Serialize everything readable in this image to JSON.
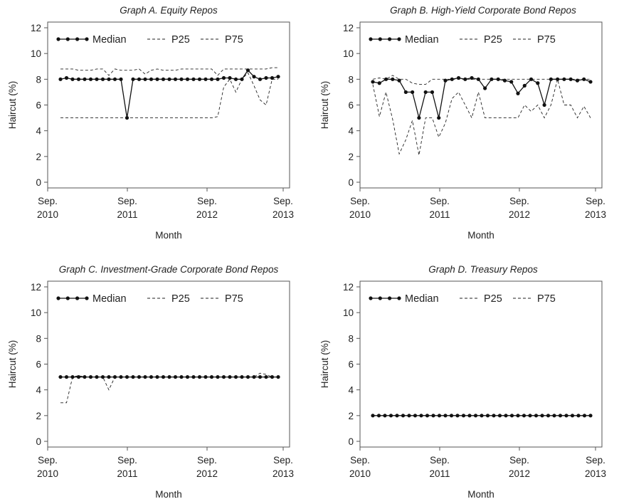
{
  "chart_data": [
    {
      "type": "line",
      "title": "Graph A. Equity Repos",
      "xlabel": "Month",
      "ylabel": "Haircut (%)",
      "ylim": [
        0,
        12
      ],
      "yticks": [
        "0",
        "2",
        "4",
        "6",
        "8",
        "10",
        "12"
      ],
      "xticks": [
        {
          "top": "Sep.",
          "bottom": "2010"
        },
        {
          "top": "Sep.",
          "bottom": "2011"
        },
        {
          "top": "Sep.",
          "bottom": "2012"
        },
        {
          "top": "Sep.",
          "bottom": "2013"
        }
      ],
      "legend": "top-left",
      "series": [
        {
          "name": "Median",
          "style": "solid-markers",
          "values": [
            8.0,
            8.1,
            8.0,
            8.0,
            8.0,
            8.0,
            8.0,
            8.0,
            8.0,
            8.0,
            8.0,
            5.0,
            8.0,
            8.0,
            8.0,
            8.0,
            8.0,
            8.0,
            8.0,
            8.0,
            8.0,
            8.0,
            8.0,
            8.0,
            8.0,
            8.0,
            8.0,
            8.1,
            8.1,
            8.0,
            8.0,
            8.7,
            8.2,
            8.0,
            8.1,
            8.1,
            8.2
          ]
        },
        {
          "name": "P25",
          "style": "dashed",
          "values": [
            5.0,
            5.0,
            5.0,
            5.0,
            5.0,
            5.0,
            5.0,
            5.0,
            5.0,
            5.0,
            5.0,
            5.0,
            5.0,
            5.0,
            5.0,
            5.0,
            5.0,
            5.0,
            5.0,
            5.0,
            5.0,
            5.0,
            5.0,
            5.0,
            5.0,
            5.0,
            5.1,
            7.4,
            8.0,
            7.0,
            8.0,
            8.5,
            7.5,
            6.4,
            6.0,
            8.0,
            8.0
          ]
        },
        {
          "name": "P75",
          "style": "dashed",
          "values": [
            8.8,
            8.8,
            8.8,
            8.7,
            8.7,
            8.7,
            8.8,
            8.8,
            8.3,
            8.8,
            8.7,
            8.7,
            8.7,
            8.8,
            8.4,
            8.7,
            8.8,
            8.7,
            8.7,
            8.7,
            8.8,
            8.8,
            8.8,
            8.8,
            8.8,
            8.8,
            8.3,
            8.8,
            8.8,
            8.8,
            8.8,
            8.8,
            8.8,
            8.8,
            8.8,
            8.9,
            8.9
          ]
        }
      ]
    },
    {
      "type": "line",
      "title": "Graph B. High-Yield Corporate Bond Repos",
      "xlabel": "Month",
      "ylabel": "Haircut (%)",
      "ylim": [
        0,
        12
      ],
      "yticks": [
        "0",
        "2",
        "4",
        "6",
        "8",
        "10",
        "12"
      ],
      "xticks": [
        {
          "top": "Sep.",
          "bottom": "2010"
        },
        {
          "top": "Sep.",
          "bottom": "2011"
        },
        {
          "top": "Sep.",
          "bottom": "2012"
        },
        {
          "top": "Sep.",
          "bottom": "2013"
        }
      ],
      "legend": "top-left",
      "series": [
        {
          "name": "Median",
          "style": "solid-markers",
          "values": [
            7.8,
            7.7,
            8.0,
            8.0,
            7.9,
            7.0,
            7.0,
            5.0,
            7.0,
            7.0,
            5.0,
            7.9,
            8.0,
            8.1,
            8.0,
            8.1,
            8.0,
            7.3,
            8.0,
            8.0,
            7.9,
            7.8,
            6.9,
            7.5,
            8.0,
            7.7,
            6.0,
            8.0,
            8.0,
            8.0,
            8.0,
            7.9,
            8.0,
            7.8
          ]
        },
        {
          "name": "P25",
          "style": "dashed",
          "values": [
            7.6,
            5.1,
            7.0,
            4.9,
            2.2,
            3.3,
            4.8,
            2.1,
            5.0,
            5.0,
            3.5,
            4.6,
            6.5,
            7.0,
            6.0,
            5.0,
            7.0,
            5.0,
            5.0,
            5.0,
            5.0,
            5.0,
            5.0,
            6.0,
            5.5,
            6.0,
            5.0,
            6.0,
            8.0,
            6.0,
            6.0,
            5.0,
            5.9,
            5.0
          ]
        },
        {
          "name": "P75",
          "style": "dashed",
          "values": [
            8.0,
            8.1,
            8.0,
            8.3,
            8.0,
            8.0,
            7.7,
            7.6,
            7.6,
            8.0,
            8.0,
            8.0,
            8.0,
            8.0,
            8.0,
            8.0,
            8.0,
            8.0,
            8.0,
            8.0,
            8.0,
            8.0,
            8.0,
            8.0,
            8.0,
            8.0,
            8.0,
            8.0,
            8.0,
            8.0,
            8.0,
            8.0,
            8.0,
            8.0
          ]
        }
      ]
    },
    {
      "type": "line",
      "title": "Graph C. Investment-Grade Corporate Bond Repos",
      "xlabel": "Month",
      "ylabel": "Haircut (%)",
      "ylim": [
        0,
        12
      ],
      "yticks": [
        "0",
        "2",
        "4",
        "6",
        "8",
        "10",
        "12"
      ],
      "xticks": [
        {
          "top": "Sep.",
          "bottom": "2010"
        },
        {
          "top": "Sep.",
          "bottom": "2011"
        },
        {
          "top": "Sep.",
          "bottom": "2012"
        },
        {
          "top": "Sep.",
          "bottom": "2013"
        }
      ],
      "legend": "top-left",
      "series": [
        {
          "name": "Median",
          "style": "solid-markers",
          "values": [
            5.0,
            5.0,
            5.0,
            5.0,
            5.0,
            5.0,
            5.0,
            5.0,
            5.0,
            5.0,
            5.0,
            5.0,
            5.0,
            5.0,
            5.0,
            5.0,
            5.0,
            5.0,
            5.0,
            5.0,
            5.0,
            5.0,
            5.0,
            5.0,
            5.0,
            5.0,
            5.0,
            5.0,
            5.0,
            5.0,
            5.0,
            5.0,
            5.0,
            5.0,
            5.0,
            5.0,
            5.0
          ]
        },
        {
          "name": "P25",
          "style": "dashed",
          "values": [
            3.0,
            3.0,
            5.0,
            5.1,
            5.0,
            5.0,
            5.0,
            5.0,
            4.0,
            5.0,
            5.0,
            5.0,
            5.0,
            5.0,
            5.0,
            5.0,
            5.0,
            5.0,
            5.0,
            5.0,
            5.0,
            5.0,
            5.0,
            5.0,
            5.0,
            5.0,
            5.0,
            5.0,
            5.0,
            5.0,
            5.0,
            5.0,
            5.0,
            5.0,
            5.0,
            5.0,
            5.0
          ]
        },
        {
          "name": "P75",
          "style": "dashed",
          "values": [
            5.0,
            5.0,
            5.0,
            5.1,
            5.0,
            5.0,
            5.0,
            5.0,
            5.0,
            5.0,
            5.0,
            5.0,
            5.0,
            5.0,
            5.0,
            5.0,
            5.0,
            5.0,
            5.0,
            5.0,
            5.0,
            5.0,
            5.0,
            5.0,
            5.0,
            5.0,
            5.0,
            5.0,
            5.0,
            5.0,
            5.0,
            5.0,
            5.0,
            5.3,
            5.2,
            5.0,
            5.0
          ]
        }
      ]
    },
    {
      "type": "line",
      "title": "Graph D. Treasury Repos",
      "xlabel": "Month",
      "ylabel": "Haircut (%)",
      "ylim": [
        0,
        12
      ],
      "yticks": [
        "0",
        "2",
        "4",
        "6",
        "8",
        "10",
        "12"
      ],
      "xticks": [
        {
          "top": "Sep.",
          "bottom": "2010"
        },
        {
          "top": "Sep.",
          "bottom": "2011"
        },
        {
          "top": "Sep.",
          "bottom": "2012"
        },
        {
          "top": "Sep.",
          "bottom": "2013"
        }
      ],
      "legend": "top-left",
      "series": [
        {
          "name": "Median",
          "style": "solid-markers",
          "values": [
            2.0,
            2.0,
            2.0,
            2.0,
            2.0,
            2.0,
            2.0,
            2.0,
            2.0,
            2.0,
            2.0,
            2.0,
            2.0,
            2.0,
            2.0,
            2.0,
            2.0,
            2.0,
            2.0,
            2.0,
            2.0,
            2.0,
            2.0,
            2.0,
            2.0,
            2.0,
            2.0,
            2.0,
            2.0,
            2.0,
            2.0,
            2.0,
            2.0,
            2.0,
            2.0,
            2.0,
            2.0
          ]
        },
        {
          "name": "P25",
          "style": "dashed",
          "values": [
            2.0,
            2.0,
            2.0,
            2.0,
            2.0,
            2.0,
            2.0,
            2.0,
            2.0,
            2.0,
            2.0,
            2.0,
            2.0,
            2.0,
            2.0,
            2.0,
            2.0,
            2.0,
            2.0,
            2.0,
            2.0,
            2.0,
            2.0,
            2.0,
            2.0,
            2.0,
            2.0,
            2.0,
            2.0,
            2.0,
            2.0,
            2.0,
            2.0,
            2.0,
            2.0,
            2.0,
            2.0
          ]
        },
        {
          "name": "P75",
          "style": "dashed",
          "values": [
            2.0,
            2.0,
            2.0,
            2.0,
            2.0,
            2.0,
            2.0,
            2.0,
            2.0,
            2.0,
            2.0,
            2.0,
            2.0,
            2.0,
            2.0,
            2.0,
            2.0,
            2.0,
            2.0,
            2.0,
            2.0,
            2.0,
            2.0,
            2.0,
            2.0,
            2.0,
            2.0,
            2.0,
            2.0,
            2.0,
            2.0,
            2.0,
            2.0,
            2.0,
            2.0,
            2.0,
            2.0
          ]
        }
      ]
    }
  ]
}
